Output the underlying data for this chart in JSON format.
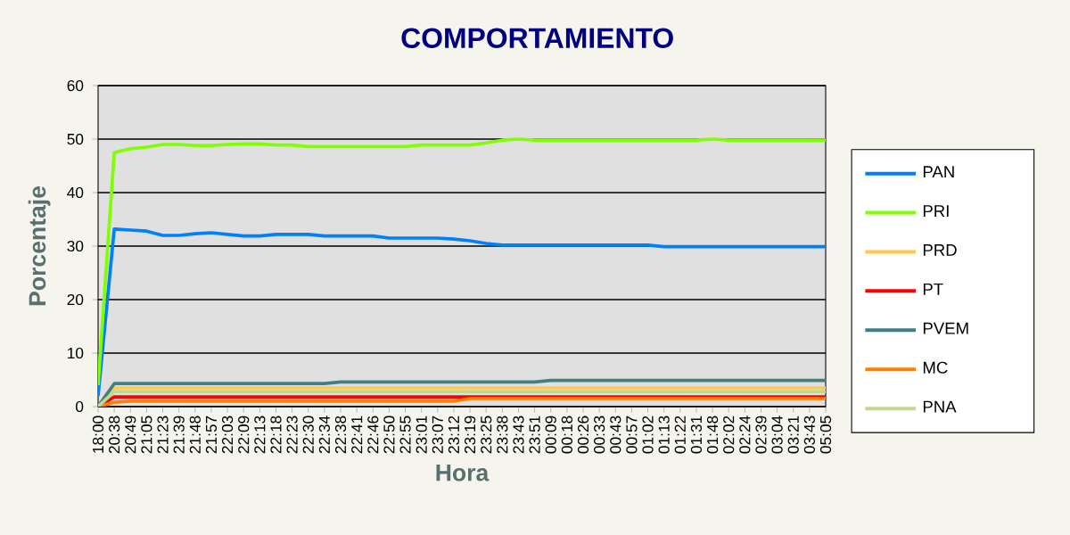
{
  "chart_data": {
    "type": "line",
    "title": "COMPORTAMIENTO",
    "xlabel": "Hora",
    "ylabel": "Porcentaje",
    "categories": [
      "18:00",
      "20:38",
      "20:49",
      "21:05",
      "21:23",
      "21:39",
      "21:48",
      "21:57",
      "22:03",
      "22:09",
      "22:13",
      "22:18",
      "22:23",
      "22:30",
      "22:34",
      "22:38",
      "22:41",
      "22:46",
      "22:50",
      "22:55",
      "23:01",
      "23:07",
      "23:12",
      "23:19",
      "23:25",
      "23:38",
      "23:43",
      "23:51",
      "00:09",
      "00:18",
      "00:26",
      "00:33",
      "00:43",
      "00:57",
      "01:02",
      "01:13",
      "01:22",
      "01:31",
      "01:48",
      "02:02",
      "02:24",
      "02:39",
      "03:04",
      "03:21",
      "03:43",
      "05:05"
    ],
    "ylim": [
      0,
      60
    ],
    "yticks": [
      0,
      10,
      20,
      30,
      40,
      50,
      60
    ],
    "grid": "y",
    "legend": "right",
    "marker": "none",
    "line_style": "solid",
    "series": [
      {
        "name": "PAN",
        "color": "#0080ff",
        "values": [
          2,
          33.2,
          33,
          32.8,
          32,
          32,
          32.3,
          32.5,
          32.2,
          31.9,
          31.9,
          32.2,
          32.2,
          32.2,
          31.9,
          31.9,
          31.9,
          31.9,
          31.5,
          31.5,
          31.5,
          31.5,
          31.3,
          31,
          30.5,
          30.2,
          30.2,
          30.2,
          30.2,
          30.2,
          30.2,
          30.2,
          30.2,
          30.2,
          30.2,
          29.9,
          29.9,
          29.9,
          29.9,
          29.9,
          29.9,
          29.9,
          29.9,
          29.9,
          29.9,
          29.9
        ]
      },
      {
        "name": "PRI",
        "color": "#80ff00",
        "values": [
          4,
          47.5,
          48.2,
          48.5,
          49,
          49,
          48.8,
          48.8,
          49,
          49.1,
          49.1,
          48.9,
          48.9,
          48.6,
          48.6,
          48.6,
          48.6,
          48.6,
          48.6,
          48.6,
          48.9,
          48.9,
          48.9,
          48.9,
          49.3,
          49.8,
          50,
          49.8,
          49.8,
          49.8,
          49.8,
          49.8,
          49.8,
          49.8,
          49.8,
          49.8,
          49.8,
          49.8,
          50,
          49.8,
          49.8,
          49.8,
          49.8,
          49.8,
          49.8,
          49.8
        ]
      },
      {
        "name": "PRD",
        "color": "#ffc850",
        "values": [
          0,
          3.5,
          3.5,
          3.5,
          3.5,
          3.5,
          3.5,
          3.5,
          3.5,
          3.5,
          3.5,
          3.5,
          3.5,
          3.5,
          3.5,
          3.5,
          3.5,
          3.5,
          3.5,
          3.5,
          3.5,
          3.5,
          3.5,
          3.5,
          3.5,
          3.5,
          3.5,
          3.5,
          3.5,
          3.5,
          3.5,
          3.5,
          3.5,
          3.5,
          3.5,
          3.5,
          3.5,
          3.5,
          3.5,
          3.5,
          3.5,
          3.5,
          3.5,
          3.5,
          3.5,
          3.5
        ]
      },
      {
        "name": "PT",
        "color": "#ff0000",
        "values": [
          0,
          1.8,
          1.8,
          1.8,
          1.8,
          1.8,
          1.8,
          1.8,
          1.8,
          1.8,
          1.8,
          1.8,
          1.8,
          1.8,
          1.8,
          1.8,
          1.8,
          1.8,
          1.8,
          1.8,
          1.8,
          1.8,
          1.8,
          1.8,
          1.8,
          1.8,
          1.8,
          1.8,
          1.8,
          1.8,
          1.8,
          1.8,
          1.8,
          1.8,
          1.8,
          1.8,
          1.8,
          1.8,
          1.8,
          1.8,
          1.8,
          1.8,
          1.8,
          1.8,
          1.8,
          1.8
        ]
      },
      {
        "name": "PVEM",
        "color": "#408080",
        "values": [
          0,
          4.3,
          4.3,
          4.3,
          4.3,
          4.3,
          4.3,
          4.3,
          4.3,
          4.3,
          4.3,
          4.3,
          4.3,
          4.3,
          4.3,
          4.6,
          4.6,
          4.6,
          4.6,
          4.6,
          4.6,
          4.6,
          4.6,
          4.6,
          4.6,
          4.6,
          4.6,
          4.6,
          4.9,
          4.9,
          4.9,
          4.9,
          4.9,
          4.9,
          4.9,
          4.9,
          4.9,
          4.9,
          4.9,
          4.9,
          4.9,
          4.9,
          4.9,
          4.9,
          4.9,
          4.9
        ]
      },
      {
        "name": "MC",
        "color": "#ff8000",
        "values": [
          0,
          0.8,
          1,
          1,
          1,
          1,
          1,
          1,
          1,
          1,
          1,
          1,
          1,
          1,
          1,
          1,
          1,
          1,
          1,
          1,
          1,
          1,
          1,
          1.5,
          1.5,
          1.5,
          1.5,
          1.5,
          1.5,
          1.5,
          1.5,
          1.5,
          1.5,
          1.5,
          1.5,
          1.5,
          1.5,
          1.5,
          1.5,
          1.5,
          1.5,
          1.5,
          1.5,
          1.5,
          1.5,
          1.5
        ]
      },
      {
        "name": "PNA",
        "color": "#c0d890",
        "values": [
          0,
          2.8,
          2.8,
          2.8,
          2.8,
          2.8,
          2.8,
          2.8,
          2.8,
          2.8,
          2.8,
          2.8,
          2.8,
          2.8,
          2.8,
          2.8,
          2.8,
          2.8,
          2.8,
          2.8,
          2.8,
          2.8,
          2.8,
          2.8,
          2.8,
          2.8,
          2.8,
          2.8,
          2.8,
          2.8,
          2.8,
          2.8,
          2.8,
          2.8,
          2.8,
          2.8,
          2.8,
          2.8,
          2.8,
          2.8,
          2.8,
          2.8,
          2.8,
          2.8,
          2.8,
          2.8
        ]
      }
    ]
  }
}
